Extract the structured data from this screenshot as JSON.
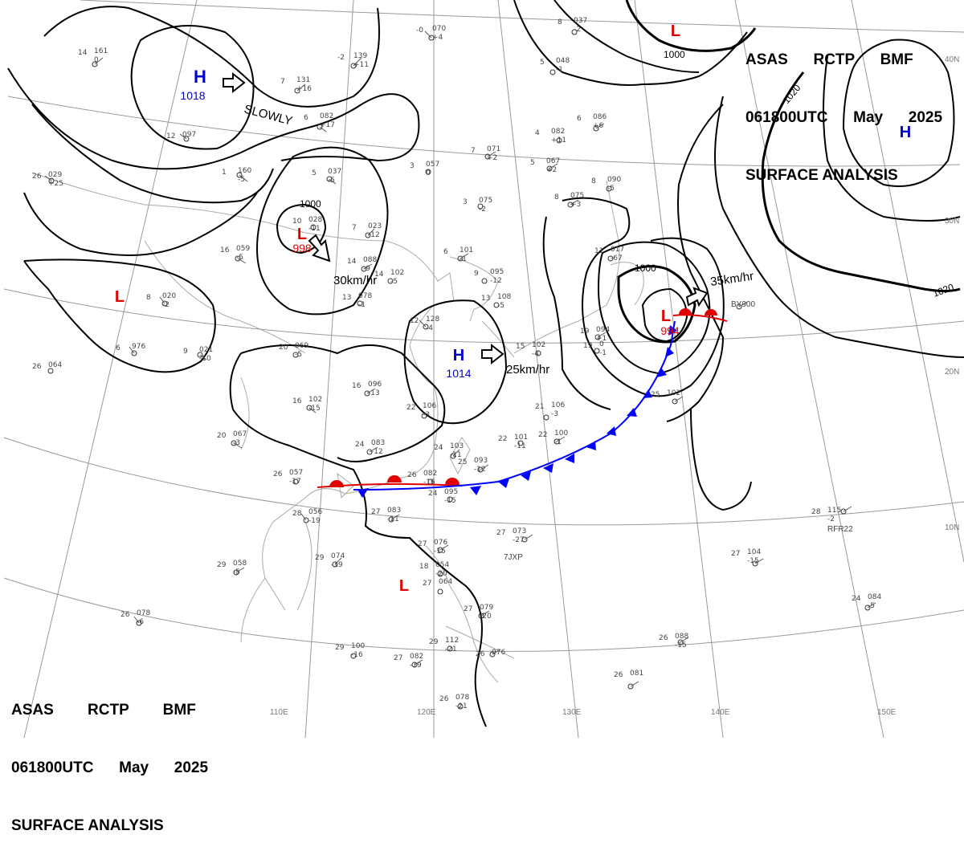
{
  "header": {
    "line1": [
      "ASAS",
      "RCTP",
      "BMF"
    ],
    "line2": [
      "061800UTC",
      "May",
      "2025"
    ],
    "line3": "SURFACE ANALYSIS"
  },
  "colors": {
    "high": "#0000cc",
    "low": "#e00000",
    "isobar": "#000000",
    "grid": "#999999",
    "coast": "#aaaaaa",
    "warm_front": "#e00000",
    "cold_front": "#0000ff"
  },
  "lat_labels": [
    "40N",
    "30N",
    "20N",
    "10N"
  ],
  "lon_labels": [
    "110E",
    "120E",
    "130E",
    "140E",
    "150E"
  ],
  "isobar_labels": [
    {
      "id": "iso-1000-north",
      "text": "1000"
    },
    {
      "id": "iso-1020-ne",
      "text": "1020"
    },
    {
      "id": "iso-1020-east",
      "text": "1020"
    },
    {
      "id": "iso-1000-china",
      "text": "1000"
    },
    {
      "id": "iso-1000-japan",
      "text": "1000"
    }
  ],
  "pressure_centers": [
    {
      "id": "high-mongolia",
      "letter": "H",
      "type": "high",
      "value": "1018"
    },
    {
      "id": "high-ecs",
      "letter": "H",
      "type": "high",
      "value": "1014"
    },
    {
      "id": "high-pacific",
      "letter": "H",
      "type": "high",
      "value": ""
    },
    {
      "id": "low-china",
      "letter": "L",
      "type": "low",
      "value": "998"
    },
    {
      "id": "low-japan",
      "letter": "L",
      "type": "low",
      "value": "994"
    },
    {
      "id": "low-north",
      "letter": "L",
      "type": "low",
      "value": ""
    },
    {
      "id": "low-west",
      "letter": "L",
      "type": "low",
      "value": ""
    },
    {
      "id": "low-scs",
      "letter": "L",
      "type": "low",
      "value": ""
    }
  ],
  "motions": [
    {
      "id": "motion-high-mongolia",
      "text": "SLOWLY"
    },
    {
      "id": "motion-low-china",
      "text": "30km/hr"
    },
    {
      "id": "motion-high-ecs",
      "text": "25km/hr"
    },
    {
      "id": "motion-low-japan",
      "text": "35km/hr"
    }
  ],
  "stations": [
    {
      "id": "st1",
      "t": "14",
      "p": "161",
      "d": "0"
    },
    {
      "id": "st2",
      "t": "-2",
      "p": "139",
      "d": "+11"
    },
    {
      "id": "st3",
      "t": "-0",
      "p": "070",
      "d": "+4"
    },
    {
      "id": "st4",
      "t": "7",
      "p": "131",
      "d": "+16"
    },
    {
      "id": "st5",
      "t": "6",
      "p": "082",
      "d": "+17"
    },
    {
      "id": "st6",
      "t": "12",
      "p": "097",
      "d": ""
    },
    {
      "id": "st7",
      "t": "1",
      "p": "160",
      "d": "-5"
    },
    {
      "id": "st8",
      "t": "26",
      "p": "029",
      "d": "+25"
    },
    {
      "id": "st9",
      "t": "5",
      "p": "037",
      "d": "-5"
    },
    {
      "id": "st10",
      "t": "10",
      "p": "028",
      "d": "-11"
    },
    {
      "id": "st11",
      "t": "7",
      "p": "023",
      "d": "-12"
    },
    {
      "id": "st12",
      "t": "16",
      "p": "059",
      "d": "-5"
    },
    {
      "id": "st13",
      "t": "8",
      "p": "020",
      "d": "-2"
    },
    {
      "id": "st14",
      "t": "6",
      "p": "976",
      "d": ""
    },
    {
      "id": "st15",
      "t": "9",
      "p": "021",
      "d": "-10"
    },
    {
      "id": "st16",
      "t": "26",
      "p": "064",
      "d": ""
    },
    {
      "id": "st17",
      "t": "14",
      "p": "088",
      "d": "-9"
    },
    {
      "id": "st18",
      "t": "14",
      "p": "102",
      "d": "-5"
    },
    {
      "id": "st19",
      "t": "6",
      "p": "101",
      "d": "-1"
    },
    {
      "id": "st20",
      "t": "3",
      "p": "057",
      "d": "0"
    },
    {
      "id": "st21",
      "t": "7",
      "p": "071",
      "d": "+2"
    },
    {
      "id": "st22",
      "t": "5",
      "p": "067",
      "d": "+2"
    },
    {
      "id": "st23",
      "t": "3",
      "p": "075",
      "d": "-2"
    },
    {
      "id": "st24",
      "t": "13",
      "p": "078",
      "d": "-1"
    },
    {
      "id": "st25",
      "t": "12",
      "p": "128",
      "d": "-4"
    },
    {
      "id": "st26",
      "t": "20",
      "p": "069",
      "d": "-5"
    },
    {
      "id": "st27",
      "t": "16",
      "p": "096",
      "d": "-13"
    },
    {
      "id": "st28",
      "t": "16",
      "p": "102",
      "d": "-15"
    },
    {
      "id": "st29",
      "t": "22",
      "p": "106",
      "d": "-3"
    },
    {
      "id": "st30",
      "t": "20",
      "p": "067",
      "d": "-3"
    },
    {
      "id": "st31",
      "t": "24",
      "p": "083",
      "d": "-12"
    },
    {
      "id": "st32",
      "t": "24",
      "p": "103",
      "d": "-11"
    },
    {
      "id": "st33",
      "t": "25",
      "p": "093",
      "d": "-12"
    },
    {
      "id": "st34",
      "t": "26",
      "p": "082",
      "d": "-16"
    },
    {
      "id": "st35",
      "t": "24",
      "p": "095",
      "d": "-15"
    },
    {
      "id": "st36",
      "t": "26",
      "p": "057",
      "d": "-17"
    },
    {
      "id": "st37",
      "t": "28",
      "p": "056",
      "d": "-19"
    },
    {
      "id": "st38",
      "t": "27",
      "p": "083",
      "d": "-11"
    },
    {
      "id": "st39",
      "t": "29",
      "p": "058",
      "d": "-5"
    },
    {
      "id": "st40",
      "t": "29",
      "p": "074",
      "d": "-19"
    },
    {
      "id": "st41",
      "t": "27",
      "p": "076",
      "d": "-15"
    },
    {
      "id": "st42",
      "t": "18",
      "p": "054",
      "d": "-20"
    },
    {
      "id": "st43",
      "t": "27",
      "p": "064",
      "d": ""
    },
    {
      "id": "st44",
      "t": "27",
      "p": "079",
      "d": "-20"
    },
    {
      "id": "st45",
      "t": "26",
      "p": "078",
      "d": "-6"
    },
    {
      "id": "st46",
      "t": "29",
      "p": "100",
      "d": "-16"
    },
    {
      "id": "st47",
      "t": "27",
      "p": "082",
      "d": "-19"
    },
    {
      "id": "st48",
      "t": "29",
      "p": "112",
      "d": "-21"
    },
    {
      "id": "st49",
      "t": "26",
      "p": "076",
      "d": ""
    },
    {
      "id": "st50",
      "t": "26",
      "p": "078",
      "d": "-21"
    },
    {
      "id": "st51",
      "t": "27",
      "p": "073",
      "d": "-27"
    },
    {
      "id": "st52",
      "t": "22",
      "p": "101",
      "d": "-11"
    },
    {
      "id": "st53",
      "t": "21",
      "p": "106",
      "d": "-3"
    },
    {
      "id": "st54",
      "t": "22",
      "p": "100",
      "d": "-1"
    },
    {
      "id": "st55",
      "t": "9",
      "p": "095",
      "d": "-12"
    },
    {
      "id": "st56",
      "t": "13",
      "p": "108",
      "d": "-5"
    },
    {
      "id": "st57",
      "t": "15",
      "p": "102",
      "d": "-4"
    },
    {
      "id": "st58",
      "t": "11",
      "p": "017",
      "d": "-67"
    },
    {
      "id": "st59",
      "t": "19",
      "p": "094",
      "d": "+1"
    },
    {
      "id": "st60",
      "t": "19",
      "p": "0",
      "d": "-1"
    },
    {
      "id": "st61",
      "t": "4",
      "p": "082",
      "d": "+11"
    },
    {
      "id": "st62",
      "t": "5",
      "p": "048",
      "d": "-1"
    },
    {
      "id": "st63",
      "t": "8",
      "p": "075",
      "d": "+3"
    },
    {
      "id": "st64",
      "t": "6",
      "p": "086",
      "d": "+6"
    },
    {
      "id": "st65",
      "t": "8",
      "p": "090",
      "d": "-5"
    },
    {
      "id": "st66",
      "t": "8",
      "p": "037",
      "d": "-2"
    },
    {
      "id": "st67",
      "t": "25",
      "p": "102",
      "d": ""
    },
    {
      "id": "st68",
      "t": "28",
      "p": "115",
      "d": "-2"
    },
    {
      "id": "st69",
      "t": "27",
      "p": "104",
      "d": "-15"
    },
    {
      "id": "st70",
      "t": "24",
      "p": "084",
      "d": "-5"
    },
    {
      "id": "st71",
      "t": "26",
      "p": "088",
      "d": "-15"
    },
    {
      "id": "st72",
      "t": "26",
      "p": "081",
      "d": ""
    }
  ],
  "ship_ids": [
    "RFR22",
    "7JXP",
    "BY900"
  ]
}
